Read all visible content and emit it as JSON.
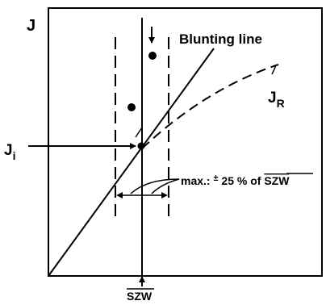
{
  "labels": {
    "y_axis": "J",
    "blunting_line": "Blunting line",
    "jr_main": "J",
    "jr_sub": "R",
    "ji_main": "J",
    "ji_sub": "i",
    "tolerance_prefix": "max.: ",
    "tolerance_pm": "±",
    "tolerance_value": " 25 % of ",
    "tolerance_ref": "SZW",
    "x_axis": "SZW"
  },
  "colors": {
    "ink": "#000000",
    "background": "#ffffff"
  }
}
